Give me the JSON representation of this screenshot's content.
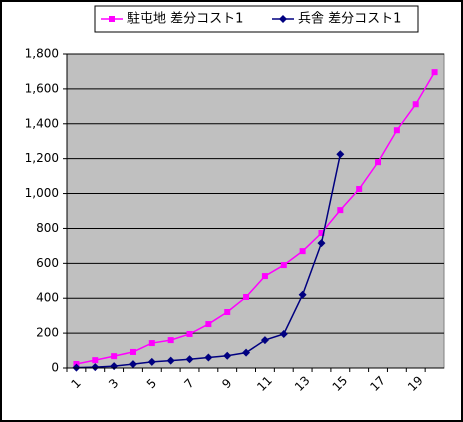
{
  "chart_data": {
    "type": "line",
    "categories": [
      "1",
      null,
      "3",
      null,
      "5",
      null,
      "7",
      null,
      "9",
      null,
      "11",
      null,
      "13",
      null,
      "15",
      null,
      "17",
      null,
      "19",
      null
    ],
    "series": [
      {
        "name": "駐屯地 差分コスト1",
        "color": "#ff00ff",
        "marker": "square",
        "values": [
          23,
          45,
          68,
          92,
          143,
          160,
          195,
          252,
          321,
          407,
          527,
          590,
          670,
          774,
          905,
          1026,
          1180,
          1363,
          1512,
          1696
        ]
      },
      {
        "name": "兵舎 差分コスト1",
        "color": "#000080",
        "marker": "diamond",
        "values": [
          2,
          5,
          11,
          22,
          35,
          42,
          50,
          60,
          70,
          88,
          160,
          195,
          420,
          716,
          1225,
          null,
          null,
          null,
          null,
          null
        ]
      }
    ],
    "ylim": [
      0,
      1800
    ],
    "yticks": [
      0,
      200,
      400,
      600,
      800,
      {
        "value": 1000,
        "label": "1,000"
      },
      {
        "value": 1200,
        "label": "1,200"
      },
      {
        "value": 1400,
        "label": "1,400"
      },
      {
        "value": 1600,
        "label": "1,600"
      },
      {
        "value": 1800,
        "label": "1,800"
      }
    ],
    "grid": true,
    "legend": "top",
    "plot_background": "#c0c0c0"
  }
}
